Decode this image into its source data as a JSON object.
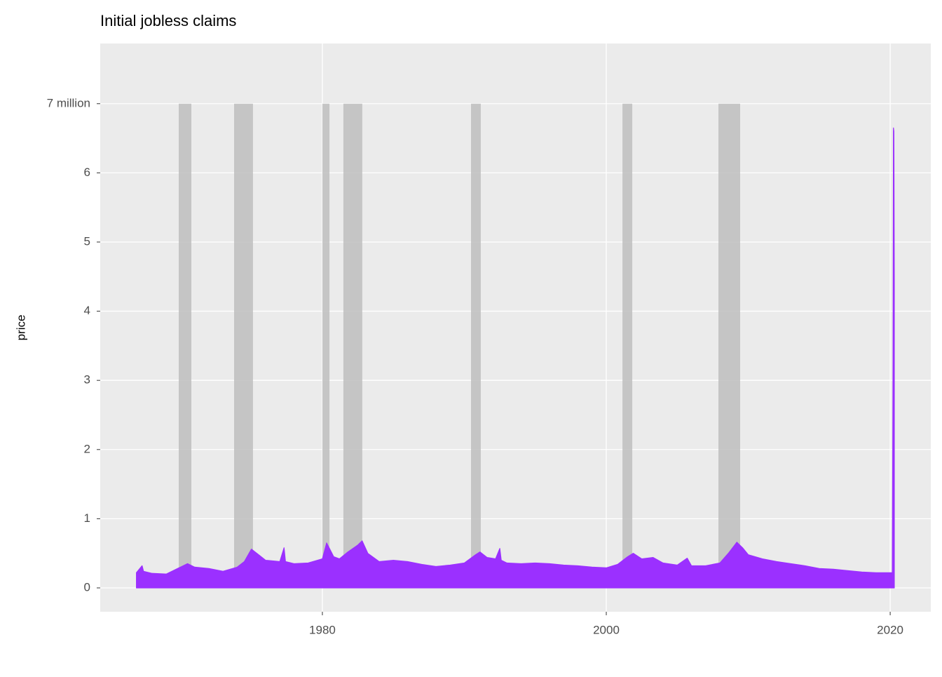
{
  "chart_data": {
    "type": "area",
    "title": "Initial jobless claims",
    "y_label": "price",
    "x": [
      1966.9,
      1967.3,
      1967.4,
      1968.0,
      1969.0,
      1970.0,
      1970.5,
      1971.0,
      1972.0,
      1973.0,
      1974.0,
      1974.5,
      1975.0,
      1975.5,
      1976.0,
      1977.0,
      1977.3,
      1977.4,
      1978.0,
      1979.0,
      1980.0,
      1980.3,
      1980.8,
      1981.2,
      1981.8,
      1982.5,
      1982.8,
      1983.2,
      1984.0,
      1985.0,
      1986.0,
      1987.0,
      1988.0,
      1989.0,
      1990.0,
      1990.8,
      1991.1,
      1991.6,
      1992.2,
      1992.5,
      1992.6,
      1993.0,
      1994.0,
      1995.0,
      1996.0,
      1997.0,
      1998.0,
      1999.0,
      2000.0,
      2000.8,
      2001.5,
      2001.9,
      2002.5,
      2003.3,
      2004.0,
      2005.0,
      2005.7,
      2006.0,
      2007.0,
      2008.0,
      2008.6,
      2009.2,
      2009.6,
      2010.0,
      2011.0,
      2012.0,
      2013.0,
      2014.0,
      2015.0,
      2016.0,
      2017.0,
      2018.0,
      2019.0,
      2020.15,
      2020.2,
      2020.23,
      2020.26,
      2020.29
    ],
    "series": [
      {
        "name": "claims",
        "color": "#9b30ff",
        "values": [
          0.22,
          0.32,
          0.24,
          0.21,
          0.2,
          0.3,
          0.35,
          0.3,
          0.28,
          0.24,
          0.3,
          0.38,
          0.56,
          0.48,
          0.4,
          0.38,
          0.58,
          0.38,
          0.35,
          0.36,
          0.42,
          0.65,
          0.45,
          0.42,
          0.52,
          0.62,
          0.68,
          0.5,
          0.38,
          0.4,
          0.38,
          0.34,
          0.31,
          0.33,
          0.36,
          0.48,
          0.52,
          0.44,
          0.42,
          0.57,
          0.4,
          0.36,
          0.35,
          0.36,
          0.35,
          0.33,
          0.32,
          0.3,
          0.29,
          0.34,
          0.45,
          0.5,
          0.42,
          0.44,
          0.36,
          0.33,
          0.43,
          0.32,
          0.32,
          0.36,
          0.5,
          0.66,
          0.58,
          0.48,
          0.42,
          0.38,
          0.35,
          0.32,
          0.28,
          0.27,
          0.25,
          0.23,
          0.22,
          0.22,
          3.31,
          6.65,
          6.6,
          4.4
        ]
      }
    ],
    "recessions": [
      [
        1969.88,
        1970.77
      ],
      [
        1973.78,
        1975.11
      ],
      [
        1980.0,
        1980.5
      ],
      [
        1981.48,
        1982.81
      ],
      [
        1990.47,
        1991.16
      ],
      [
        2001.14,
        2001.83
      ],
      [
        2007.9,
        2009.43
      ]
    ],
    "recession_top": 7,
    "xlim": [
      1964.35,
      2022.86
    ],
    "xticks": [
      1980,
      2000,
      2020
    ],
    "ylim": [
      -0.345,
      7.87
    ],
    "yticks": [
      0,
      1,
      2,
      3,
      4,
      5,
      6,
      {
        "value": 7,
        "label": "7 million"
      }
    ],
    "grid": true
  }
}
